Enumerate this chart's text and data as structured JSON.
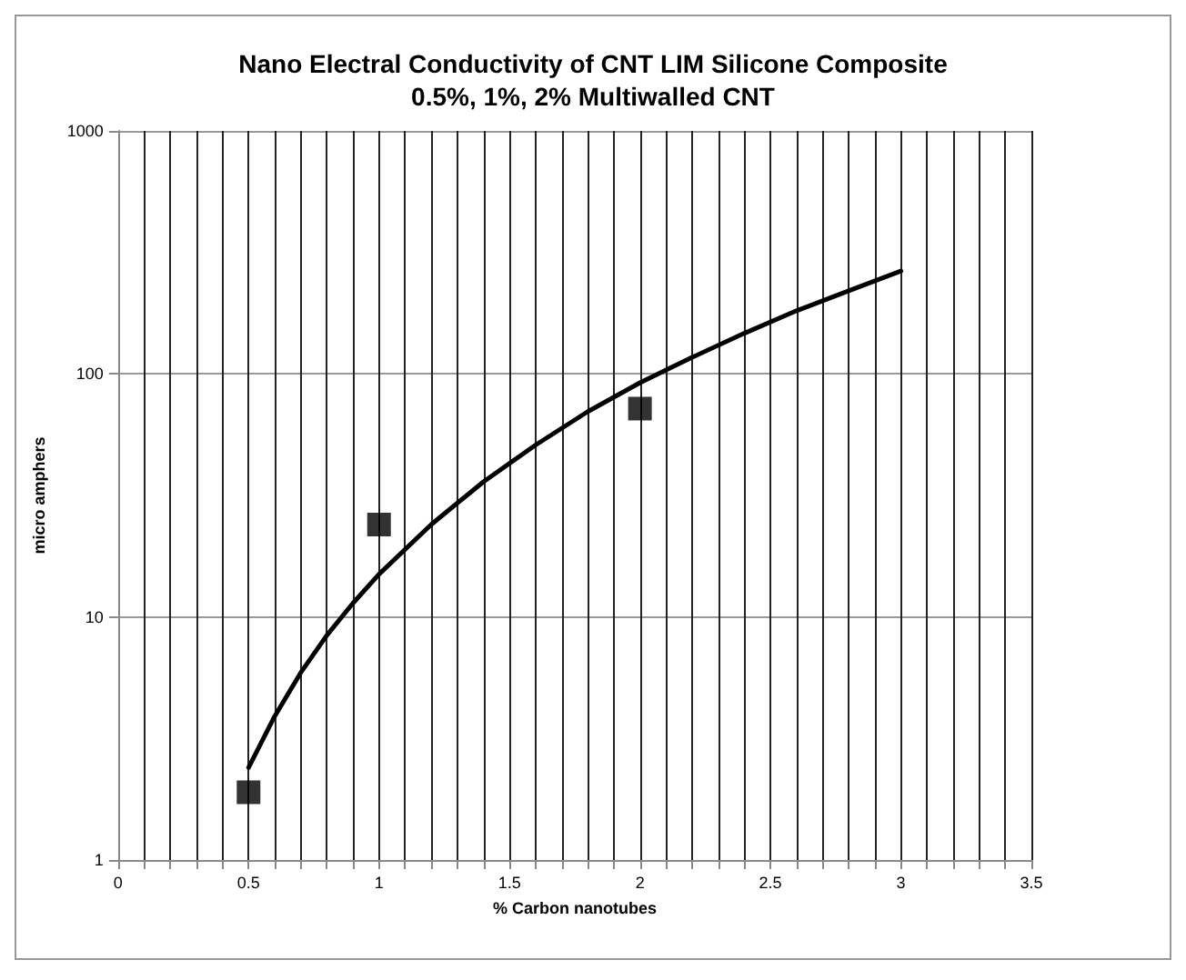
{
  "chart_data": {
    "type": "scatter",
    "title": "Nano Electral Conductivity of CNT LIM Silicone Composite",
    "subtitle": "0.5%, 1%, 2% Multiwalled CNT",
    "xlabel": "% Carbon nanotubes",
    "ylabel": "micro amphers",
    "log": "y",
    "grid": true,
    "xlim": [
      0,
      3.5
    ],
    "ylim": [
      1,
      1000
    ],
    "yticks": [
      1,
      10,
      100,
      1000
    ],
    "xticks": [
      0,
      {
        "value": 0.1,
        "label": null
      },
      {
        "value": 0.2,
        "label": null
      },
      {
        "value": 0.3,
        "label": null
      },
      {
        "value": 0.4,
        "label": null
      },
      0.5,
      {
        "value": 0.6,
        "label": null
      },
      {
        "value": 0.7,
        "label": null
      },
      {
        "value": 0.8,
        "label": null
      },
      {
        "value": 0.9,
        "label": null
      },
      1,
      {
        "value": 1.1,
        "label": null
      },
      {
        "value": 1.2,
        "label": null
      },
      {
        "value": 1.3,
        "label": null
      },
      {
        "value": 1.4,
        "label": null
      },
      1.5,
      {
        "value": 1.6,
        "label": null
      },
      {
        "value": 1.7,
        "label": null
      },
      {
        "value": 1.8,
        "label": null
      },
      {
        "value": 1.9,
        "label": null
      },
      2,
      {
        "value": 2.1,
        "label": null
      },
      {
        "value": 2.2,
        "label": null
      },
      {
        "value": 2.3,
        "label": null
      },
      {
        "value": 2.4,
        "label": null
      },
      2.5,
      {
        "value": 2.6,
        "label": null
      },
      {
        "value": 2.7,
        "label": null
      },
      {
        "value": 2.8,
        "label": null
      },
      {
        "value": 2.9,
        "label": null
      },
      3,
      {
        "value": 3.1,
        "label": null
      },
      {
        "value": 3.2,
        "label": null
      },
      {
        "value": 3.3,
        "label": null
      },
      {
        "value": 3.4,
        "label": null
      },
      3.5
    ],
    "series": [
      {
        "marker": "square",
        "color": "#000000",
        "x": [
          0.5,
          1,
          2
        ],
        "values": [
          1.9,
          24,
          72
        ]
      },
      {
        "type": "line",
        "marker": "none",
        "line_style": "solid",
        "color": "#000000",
        "x": [
          0.5,
          0.6,
          0.7,
          0.8,
          0.9,
          1.0,
          1.2,
          1.4,
          1.6,
          1.8,
          2.0,
          2.2,
          2.4,
          2.6,
          2.8,
          3.0
        ],
        "values": [
          2.4,
          3.9,
          5.9,
          8.4,
          11.4,
          15,
          24,
          36,
          51,
          70,
          92,
          117,
          147,
          182,
          220,
          265
        ]
      }
    ]
  }
}
